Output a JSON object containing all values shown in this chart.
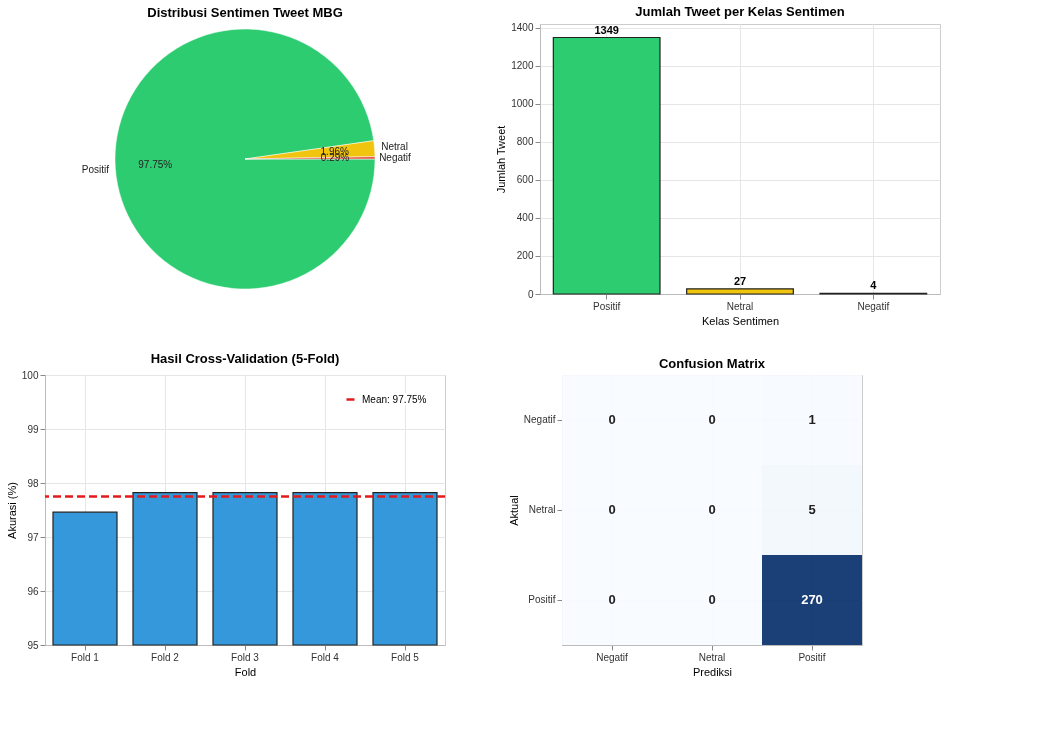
{
  "chart_data": [
    {
      "type": "pie",
      "title": "Distribusi Sentimen Tweet MBG",
      "categories": [
        "Positif",
        "Netral",
        "Negatif"
      ],
      "values": [
        97.75,
        1.96,
        0.29
      ],
      "colors": [
        "#2ecc71",
        "#f1c40f",
        "#e74c3c"
      ],
      "value_labels": [
        "97.75%",
        "1.96%",
        "0.29%"
      ]
    },
    {
      "type": "bar",
      "title": "Jumlah Tweet per Kelas Sentimen",
      "xlabel": "Kelas Sentimen",
      "ylabel": "Jumlah Tweet",
      "categories": [
        "Positif",
        "Netral",
        "Negatif"
      ],
      "values": [
        1349,
        27,
        4
      ],
      "colors": [
        "#2ecc71",
        "#f1c40f",
        "#e74c3c"
      ],
      "ylim": [
        0,
        1420
      ],
      "yticks": [
        0,
        200,
        400,
        600,
        800,
        1000,
        1200,
        1400
      ],
      "data_labels": true,
      "grid": true
    },
    {
      "type": "bar",
      "title": "Hasil Cross-Validation (5-Fold)",
      "xlabel": "Fold",
      "ylabel": "Akurasi (%)",
      "categories": [
        "Fold 1",
        "Fold 2",
        "Fold 3",
        "Fold 4",
        "Fold 5"
      ],
      "values": [
        97.46,
        97.82,
        97.82,
        97.82,
        97.82
      ],
      "color": "#3498db",
      "ylim": [
        95,
        100
      ],
      "yticks": [
        95,
        96,
        97,
        98,
        99,
        100
      ],
      "grid": true,
      "legend": "top right",
      "ref_lines": [
        {
          "axis": "y",
          "value": 97.75,
          "label": "Mean: 97.75%",
          "color": "#e31a1c",
          "line_style": "dashed"
        }
      ]
    },
    {
      "type": "heatmap",
      "title": "Confusion Matrix",
      "xlabel": "Prediksi",
      "ylabel": "Aktual",
      "categories": [
        "Negatif",
        "Netral",
        "Positif"
      ],
      "y_categories": [
        "Negatif",
        "Netral",
        "Positif"
      ],
      "cells": [
        [
          0,
          0,
          1
        ],
        [
          0,
          0,
          5
        ],
        [
          0,
          0,
          270
        ]
      ],
      "data_labels": true,
      "grid": true
    }
  ]
}
